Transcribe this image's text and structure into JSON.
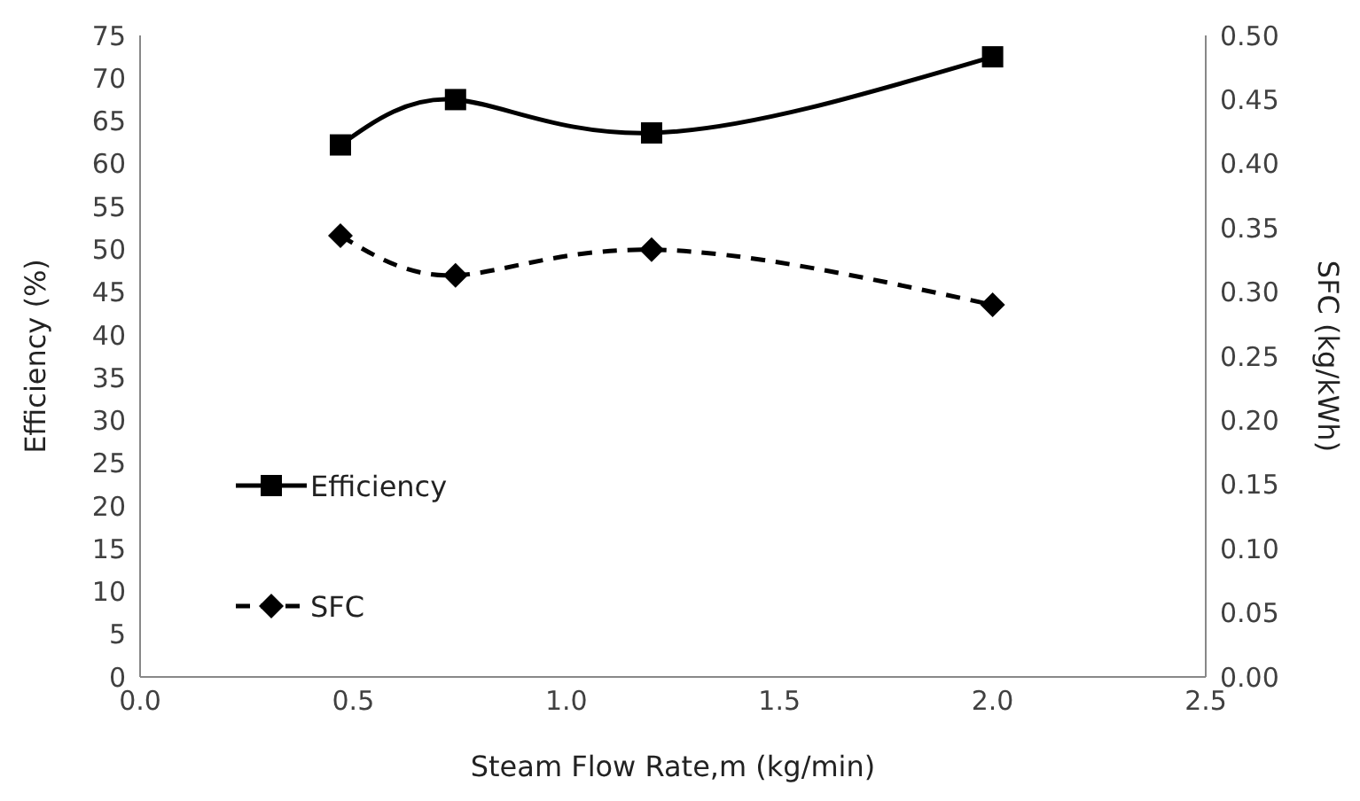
{
  "chart_data": {
    "type": "line",
    "xlabel": "Steam Flow Rate,m (kg/min)",
    "ylabel": "Efficiency (%)",
    "y2label": "SFC (kg/kWh)",
    "x": [
      0.47,
      0.74,
      1.2,
      2.0
    ],
    "series": [
      {
        "name": "Efficiency",
        "color": "#000000",
        "values": [
          62.2,
          67.5,
          63.6,
          72.5
        ],
        "marker": "square",
        "line_style": "solid"
      },
      {
        "name": "SFC",
        "color": "#000000",
        "values": [
          0.344,
          0.313,
          0.333,
          0.29
        ],
        "marker": "diamond",
        "line_style": "dashed",
        "axis": "y2"
      }
    ],
    "xlim": [
      0,
      2.5
    ],
    "xticks": [
      {
        "value": 0,
        "label": "0.0"
      },
      {
        "value": 0.5,
        "label": "0.5"
      },
      {
        "value": 1,
        "label": "1.0"
      },
      {
        "value": 1.5,
        "label": "1.5"
      },
      {
        "value": 2,
        "label": "2.0"
      },
      {
        "value": 2.5,
        "label": "2.5"
      }
    ],
    "ylim": [
      0,
      75
    ],
    "yticks": [
      0,
      5,
      10,
      15,
      20,
      25,
      30,
      35,
      40,
      45,
      50,
      55,
      60,
      65,
      70,
      75
    ],
    "y2lim": [
      0,
      0.5
    ],
    "y2ticks": [
      {
        "value": 0,
        "label": "0.00"
      },
      {
        "value": 0.05,
        "label": "0.05"
      },
      {
        "value": 0.1,
        "label": "0.10"
      },
      {
        "value": 0.15,
        "label": "0.15"
      },
      {
        "value": 0.2,
        "label": "0.20"
      },
      {
        "value": 0.25,
        "label": "0.25"
      },
      {
        "value": 0.3,
        "label": "0.30"
      },
      {
        "value": 0.35,
        "label": "0.35"
      },
      {
        "value": 0.4,
        "label": "0.40"
      },
      {
        "value": 0.45,
        "label": "0.45"
      },
      {
        "value": 0.5,
        "label": "0.50"
      }
    ],
    "grid": false,
    "legend": "left"
  }
}
